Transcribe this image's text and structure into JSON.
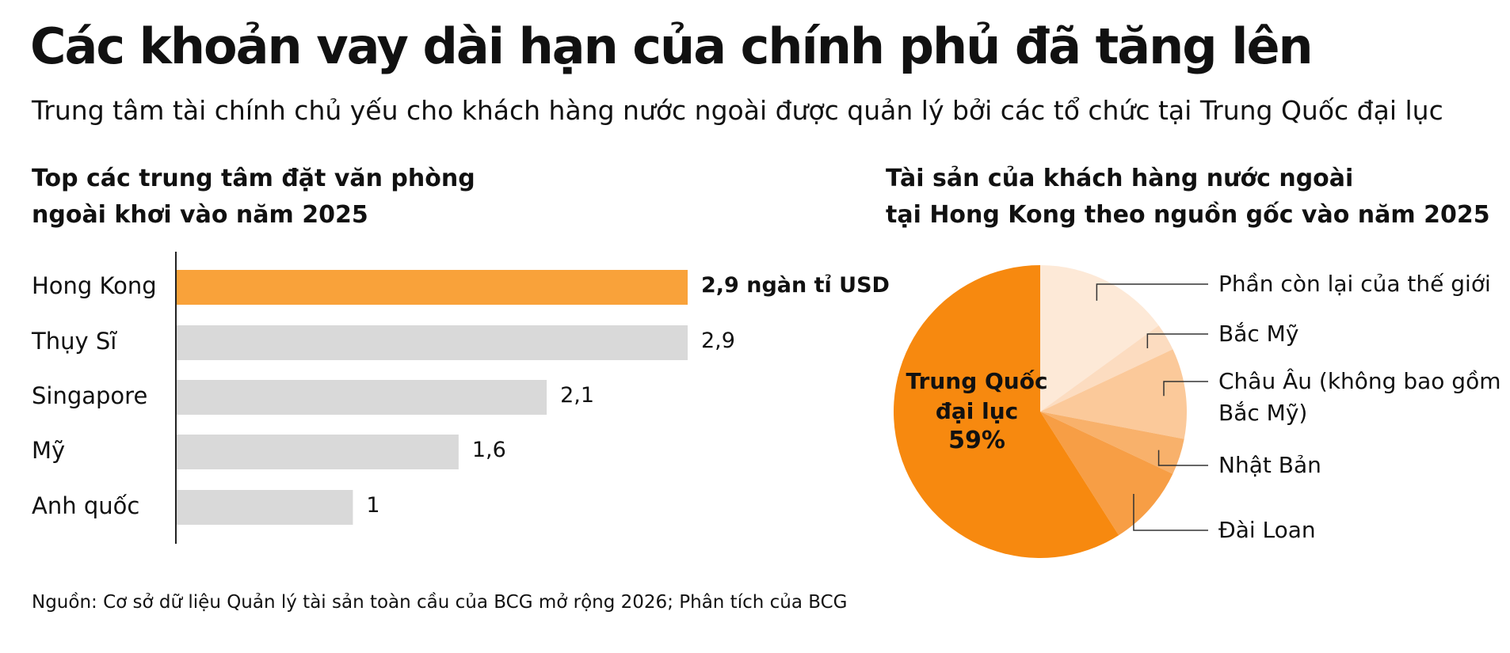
{
  "title": "Các khoản vay dài hạn của chính phủ đã tăng lên",
  "subtitle": "Trung tâm tài chính chủ yếu cho khách hàng nước ngoài được quản lý bởi các tổ chức tại Trung Quốc đại lục",
  "source": "Nguồn: Cơ sở dữ liệu Quản lý tài sản toàn cầu của BCG mở rộng 2026; Phân tích của BCG",
  "chart_data": [
    {
      "type": "hbar",
      "title": "Top các trung tâm đặt văn phòng\nngoài khơi vào năm 2025",
      "categories": [
        "Hong Kong",
        "Thụy Sĩ",
        "Singapore",
        "Mỹ",
        "Anh quốc"
      ],
      "values": [
        2.9,
        2.9,
        2.1,
        1.6,
        1
      ],
      "value_labels": [
        "2,9 ngàn tỉ USD",
        "2,9",
        "2,1",
        "1,6",
        "1"
      ],
      "colors": [
        "#f9a23a",
        "#d9d9d9",
        "#d9d9d9",
        "#d9d9d9",
        "#d9d9d9"
      ]
    },
    {
      "type": "pie",
      "title": "Tài sản của khách hàng nước ngoài\ntại Hong Kong theo nguồn gốc vào năm 2025",
      "categories": [
        "Phần còn lại của thế giới",
        "Bắc Mỹ",
        "Châu Âu (không bao gồm\nBắc Mỹ)",
        "Nhật Bản",
        "Đài Loan",
        "Trung Quốc\nđại lục"
      ],
      "values": [
        15,
        3,
        10,
        4,
        9,
        59
      ],
      "value_labels": [
        null,
        null,
        null,
        null,
        null,
        "59%"
      ],
      "colors": [
        "#fde9d7",
        "#fcdcc0",
        "#fbc99a",
        "#f8b16b",
        "#f79e45",
        "#f7890f"
      ]
    }
  ]
}
